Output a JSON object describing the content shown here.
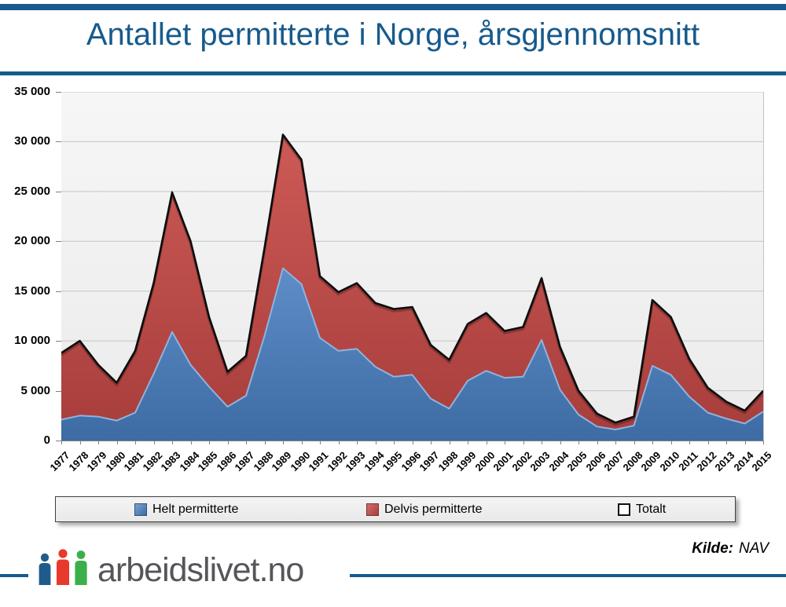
{
  "header": {
    "title": "Antallet permitterte i Norge, årsgjennomsnitt"
  },
  "chart_data": {
    "type": "area",
    "stacked": true,
    "title": "Antallet permitterte i Norge, årsgjennomsnitt",
    "categories": [
      "1977",
      "1978",
      "1979",
      "1980",
      "1981",
      "1982",
      "1983",
      "1984",
      "1985",
      "1986",
      "1987",
      "1988",
      "1989",
      "1990",
      "1991",
      "1992",
      "1993",
      "1994",
      "1995",
      "1996",
      "1997",
      "1998",
      "1999",
      "2000",
      "2001",
      "2002",
      "2003",
      "2004",
      "2005",
      "2006",
      "2007",
      "2008",
      "2009",
      "2010",
      "2011",
      "2012",
      "2013",
      "2014",
      "2015"
    ],
    "series": [
      {
        "name": "Helt permitterte",
        "color": "#4F81BD",
        "values": [
          2100,
          2500,
          2400,
          2000,
          2800,
          6700,
          10900,
          7600,
          5400,
          3400,
          4500,
          10500,
          17300,
          15700,
          10300,
          9000,
          9200,
          7400,
          6400,
          6600,
          4200,
          3200,
          6000,
          7000,
          6300,
          6400,
          10100,
          5100,
          2600,
          1400,
          1100,
          1500,
          7500,
          6600,
          4400,
          2800,
          2200,
          1700,
          2900
        ]
      },
      {
        "name": "Delvis permitterte",
        "color": "#C0504D",
        "values": [
          6700,
          7500,
          5200,
          3800,
          6200,
          9100,
          14000,
          12400,
          7000,
          3500,
          4000,
          8800,
          13400,
          12500,
          6200,
          5900,
          6600,
          6400,
          6800,
          6800,
          5400,
          4900,
          5700,
          5800,
          4700,
          5000,
          6200,
          4300,
          2400,
          1300,
          700,
          900,
          6600,
          5800,
          3800,
          2500,
          1700,
          1300,
          2100
        ]
      },
      {
        "name": "Totalt",
        "render": "line",
        "color": "#0d0d0d",
        "values": [
          8800,
          10000,
          7600,
          5800,
          9000,
          15800,
          24900,
          20000,
          12400,
          6900,
          8500,
          19300,
          30700,
          28200,
          16500,
          14900,
          15800,
          13800,
          13200,
          13400,
          9600,
          8100,
          11700,
          12800,
          11000,
          11400,
          16300,
          9400,
          5000,
          2700,
          1800,
          2400,
          14100,
          12400,
          8200,
          5300,
          3900,
          3000,
          5000
        ]
      }
    ],
    "ylim": [
      0,
      35000
    ],
    "ytick_step": 5000,
    "ytick_labels": [
      "35 000",
      "30 000",
      "25 000",
      "20 000",
      "15 000",
      "10 000",
      "5 000",
      "0"
    ],
    "grid": true,
    "plot_background": "#f0f0f0",
    "legend_position": "bottom"
  },
  "legend": {
    "items": [
      {
        "label": "Helt permitterte",
        "swatch_color": "#4F81BD"
      },
      {
        "label": "Delvis permitterte",
        "swatch_color": "#C0504D"
      },
      {
        "label": "Totalt",
        "swatch_color": "#FFFFFF"
      }
    ]
  },
  "footer": {
    "source_label": "Kilde:",
    "source_value": "NAV",
    "brand_text": "arbeidslivet.no",
    "logo_person_colors": [
      "#1F5C8B",
      "#E8392D",
      "#3BB04A"
    ]
  },
  "theme": {
    "accent_blue": "#175A8C",
    "grid_color": "#c4c4c4"
  }
}
